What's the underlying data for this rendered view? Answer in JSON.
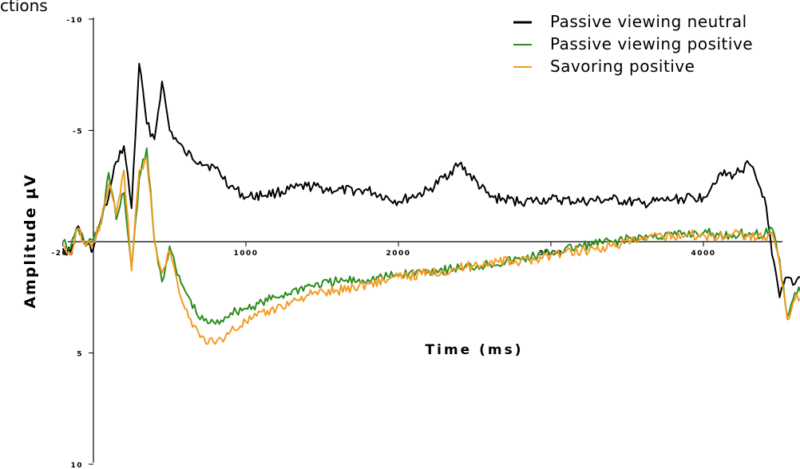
{
  "corner_text": "ctions",
  "chart_data": {
    "type": "line",
    "title": "",
    "xlabel": "Time (ms)",
    "ylabel": "Amplitude µV",
    "xlim": [
      -200,
      4800
    ],
    "ylim": [
      -10,
      10
    ],
    "y_inverted": true,
    "grid": false,
    "legend_position": "top-right",
    "x_ticks": [
      -200,
      1000,
      2000,
      3000,
      4000
    ],
    "x_tick_labels": [
      "-200",
      "1000",
      "2000",
      "3000",
      "4000"
    ],
    "y_ticks": [
      -10,
      -5,
      5,
      10
    ],
    "y_tick_labels": [
      "-10",
      "-5",
      "5",
      "10"
    ],
    "series": [
      {
        "name": "Passive viewing neutral",
        "color": "#000000",
        "x": [
          -200,
          -150,
          -100,
          -50,
          0,
          50,
          100,
          150,
          200,
          250,
          300,
          350,
          400,
          450,
          500,
          550,
          600,
          700,
          800,
          900,
          1000,
          1200,
          1400,
          1600,
          1800,
          2000,
          2200,
          2400,
          2600,
          2800,
          3000,
          3200,
          3400,
          3600,
          3800,
          4000,
          4100,
          4200,
          4300,
          4400,
          4450,
          4500,
          4550,
          4600,
          4650,
          4700,
          4750,
          4800
        ],
        "y": [
          0.3,
          0.5,
          -0.7,
          0.2,
          0.3,
          -1.0,
          -2.0,
          -3.6,
          -4.3,
          -1.5,
          -8.0,
          -5.3,
          -4.6,
          -7.2,
          -5.0,
          -4.5,
          -4.0,
          -3.6,
          -3.3,
          -2.5,
          -2.0,
          -2.2,
          -2.5,
          -2.3,
          -2.3,
          -1.8,
          -2.3,
          -3.5,
          -2.0,
          -1.8,
          -1.9,
          -1.8,
          -1.9,
          -1.7,
          -1.9,
          -2.0,
          -3.0,
          -3.0,
          -3.5,
          -2.0,
          0.6,
          2.5,
          1.6,
          1.9,
          1.3,
          1.0,
          1.6,
          0.6
        ]
      },
      {
        "name": "Passive viewing positive",
        "color": "#2e8b1e",
        "x": [
          -200,
          -150,
          -100,
          -50,
          0,
          50,
          100,
          150,
          200,
          250,
          300,
          350,
          400,
          450,
          500,
          550,
          600,
          700,
          800,
          900,
          1000,
          1200,
          1400,
          1600,
          1800,
          2000,
          2200,
          2400,
          2600,
          2800,
          3000,
          3200,
          3400,
          3600,
          3800,
          4000,
          4100,
          4200,
          4300,
          4400,
          4450,
          4500,
          4550,
          4600,
          4650,
          4700,
          4750,
          4800
        ],
        "y": [
          0.0,
          0.3,
          -0.6,
          0.1,
          -0.1,
          -0.8,
          -3.1,
          -1.0,
          -2.2,
          1.2,
          -2.8,
          -4.2,
          0.0,
          1.8,
          0.2,
          1.5,
          2.2,
          3.5,
          3.7,
          3.2,
          3.0,
          2.5,
          2.0,
          1.8,
          1.7,
          1.5,
          1.3,
          1.2,
          1.0,
          0.8,
          0.5,
          0.2,
          0.0,
          -0.2,
          -0.3,
          -0.4,
          -0.3,
          -0.3,
          -0.4,
          -0.3,
          -0.6,
          0.8,
          3.4,
          2.3,
          2.1,
          2.8,
          2.2,
          1.8
        ]
      },
      {
        "name": "Savoring positive",
        "color": "#f29b22",
        "x": [
          -200,
          -150,
          -100,
          -50,
          0,
          50,
          100,
          150,
          200,
          250,
          300,
          350,
          400,
          450,
          500,
          550,
          600,
          700,
          800,
          900,
          1000,
          1200,
          1400,
          1600,
          1800,
          2000,
          2200,
          2400,
          2600,
          2800,
          3000,
          3200,
          3400,
          3600,
          3800,
          4000,
          4100,
          4200,
          4300,
          4400,
          4450,
          4500,
          4550,
          4600,
          4650,
          4700,
          4750,
          4800
        ],
        "y": [
          0.2,
          0.6,
          -0.6,
          0.2,
          0.0,
          -0.9,
          -2.6,
          -1.2,
          -3.2,
          1.3,
          -3.2,
          -3.7,
          -0.1,
          1.4,
          0.4,
          1.8,
          3.0,
          4.3,
          4.6,
          4.0,
          3.6,
          3.0,
          2.4,
          2.2,
          1.9,
          1.6,
          1.4,
          1.2,
          0.9,
          0.9,
          0.6,
          0.4,
          0.2,
          -0.1,
          -0.3,
          -0.3,
          -0.2,
          -0.4,
          -0.3,
          -0.2,
          -0.4,
          1.0,
          3.5,
          2.6,
          2.4,
          2.7,
          2.3,
          1.6
        ]
      }
    ]
  }
}
